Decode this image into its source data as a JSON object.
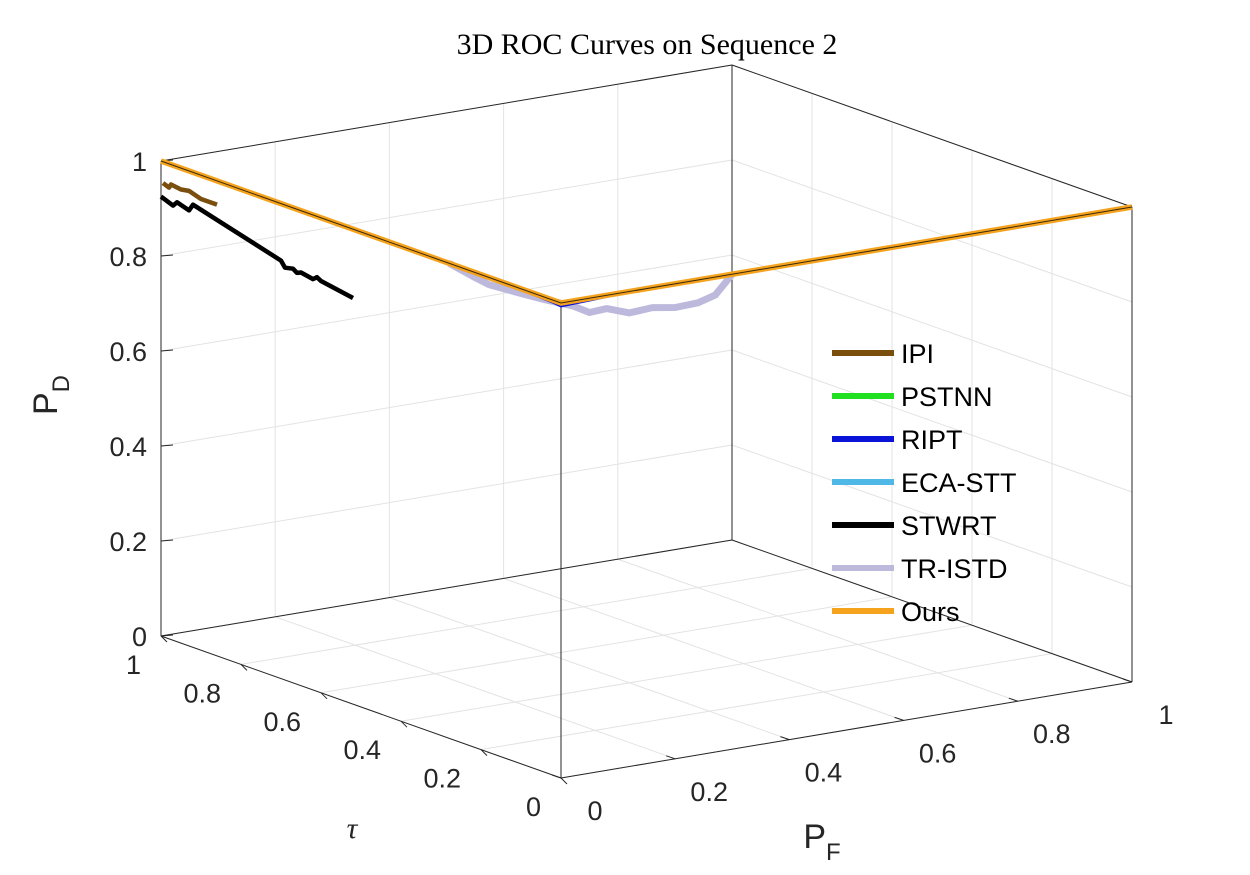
{
  "chart_data": {
    "type": "line3d",
    "title": "3D ROC Curves on Sequence 2",
    "xlabel": "P",
    "xlabel_sub": "F",
    "ylabel": "τ",
    "zlabel": "P",
    "zlabel_sub": "D",
    "xlim": [
      0,
      1
    ],
    "ylim": [
      0,
      1
    ],
    "zlim": [
      0,
      1
    ],
    "x_ticks": [
      "0",
      "0.2",
      "0.4",
      "0.6",
      "0.8",
      "1"
    ],
    "y_ticks": [
      "0",
      "0.2",
      "0.4",
      "0.6",
      "0.8",
      "1"
    ],
    "z_ticks": [
      "0",
      "0.2",
      "0.4",
      "0.6",
      "0.8",
      "1"
    ],
    "grid": true,
    "legend_position": "right",
    "series": [
      {
        "name": "IPI",
        "color": "#7a4f0e",
        "width": 4.5,
        "points": [
          [
            0,
            0.995,
            0.955
          ],
          [
            0,
            0.98,
            0.95
          ],
          [
            0,
            0.975,
            0.958
          ],
          [
            0,
            0.95,
            0.955
          ],
          [
            0,
            0.93,
            0.958
          ],
          [
            0,
            0.9,
            0.95
          ],
          [
            0,
            0.86,
            0.95
          ]
        ]
      },
      {
        "name": "PSTNN",
        "color": "#21e021",
        "width": 4,
        "points": [
          [
            0,
            1,
            1
          ],
          [
            0,
            0.75,
            1
          ],
          [
            0,
            0.5,
            1
          ],
          [
            0,
            0.25,
            1
          ],
          [
            0,
            0,
            1
          ],
          [
            0.2,
            0,
            1
          ],
          [
            0.4,
            0,
            1
          ],
          [
            0.6,
            0,
            1
          ],
          [
            0.8,
            0,
            1
          ],
          [
            1,
            0,
            1
          ]
        ]
      },
      {
        "name": "RIPT",
        "color": "#0a14d9",
        "width": 4,
        "points": [
          [
            0,
            0.1,
            1
          ],
          [
            0,
            0.05,
            0.998
          ],
          [
            0,
            0.02,
            0.997
          ],
          [
            0,
            0,
            0.995
          ],
          [
            0.02,
            0,
            0.996
          ],
          [
            0.05,
            0,
            0.997
          ],
          [
            0.1,
            0,
            1
          ],
          [
            0.4,
            0,
            1
          ],
          [
            1,
            0,
            1
          ]
        ]
      },
      {
        "name": "ECA-STT",
        "color": "#4fb8e6",
        "width": 4,
        "points": [
          [
            0,
            1,
            1
          ],
          [
            0,
            0.5,
            1
          ],
          [
            0,
            0,
            1
          ],
          [
            0.5,
            0,
            1
          ],
          [
            1,
            0,
            1
          ]
        ]
      },
      {
        "name": "STWRT",
        "color": "#000000",
        "width": 4.5,
        "points": [
          [
            0,
            1,
            0.925
          ],
          [
            0,
            0.97,
            0.915
          ],
          [
            0,
            0.96,
            0.925
          ],
          [
            0,
            0.93,
            0.917
          ],
          [
            0,
            0.92,
            0.932
          ],
          [
            0,
            0.7,
            0.88
          ],
          [
            0,
            0.69,
            0.868
          ],
          [
            0,
            0.67,
            0.872
          ],
          [
            0,
            0.66,
            0.866
          ],
          [
            0,
            0.65,
            0.87
          ],
          [
            0,
            0.62,
            0.865
          ],
          [
            0,
            0.61,
            0.872
          ],
          [
            0,
            0.6,
            0.867
          ],
          [
            0,
            0.52,
            0.855
          ]
        ]
      },
      {
        "name": "TR-ISTD",
        "color": "#bdb9dc",
        "width": 7,
        "points": [
          [
            0,
            0.28,
            1
          ],
          [
            0,
            0.22,
            0.99
          ],
          [
            0,
            0.18,
            0.985
          ],
          [
            0,
            0.1,
            0.99
          ],
          [
            0,
            0.04,
            0.995
          ],
          [
            0.02,
            0,
            0.99
          ],
          [
            0.05,
            0,
            0.97
          ],
          [
            0.08,
            0,
            0.972
          ],
          [
            0.12,
            0,
            0.955
          ],
          [
            0.16,
            0,
            0.958
          ],
          [
            0.2,
            0,
            0.95
          ],
          [
            0.24,
            0,
            0.952
          ],
          [
            0.27,
            0,
            0.962
          ],
          [
            0.3,
            0,
            1
          ]
        ]
      },
      {
        "name": "Ours",
        "color": "#f5a21c",
        "width": 5.5,
        "points": [
          [
            0,
            1,
            1
          ],
          [
            0,
            0.75,
            1
          ],
          [
            0,
            0.5,
            1
          ],
          [
            0,
            0.25,
            1
          ],
          [
            0,
            0,
            1
          ],
          [
            0.25,
            0,
            1
          ],
          [
            0.5,
            0,
            1
          ],
          [
            0.75,
            0,
            1
          ],
          [
            1,
            0,
            1
          ]
        ]
      }
    ]
  }
}
